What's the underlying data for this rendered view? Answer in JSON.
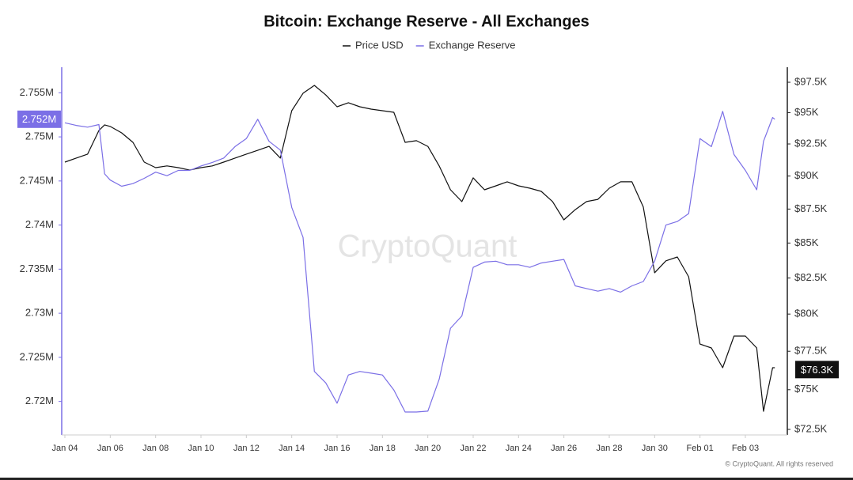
{
  "chart_data": {
    "type": "line",
    "title": "Bitcoin: Exchange Reserve - All Exchanges",
    "watermark": "CryptoQuant",
    "footer": "© CryptoQuant. All rights reserved",
    "x": [
      0,
      0.5,
      1,
      1.5,
      1.75,
      2,
      2.5,
      3,
      3.5,
      4,
      4.5,
      5,
      5.5,
      6,
      6.5,
      7,
      7.5,
      8,
      8.5,
      9,
      9.5,
      10,
      10.5,
      11,
      11.5,
      12,
      12.5,
      13,
      13.5,
      14,
      14.5,
      15,
      15.5,
      16,
      16.5,
      17,
      17.5,
      18,
      18.5,
      19,
      19.5,
      20,
      20.5,
      21,
      21.5,
      22,
      22.5,
      23,
      23.5,
      24,
      24.5,
      25,
      25.5,
      26,
      26.5,
      27,
      27.5,
      28,
      28.5,
      29,
      29.5,
      30,
      30.5,
      30.8,
      31.2,
      31.3
    ],
    "xlim": [
      -0.14,
      31.85
    ],
    "xticks": [
      {
        "value": 0,
        "label": "Jan 04"
      },
      {
        "value": 2,
        "label": "Jan 06"
      },
      {
        "value": 4,
        "label": "Jan 08"
      },
      {
        "value": 6,
        "label": "Jan 10"
      },
      {
        "value": 8,
        "label": "Jan 12"
      },
      {
        "value": 10,
        "label": "Jan 14"
      },
      {
        "value": 12,
        "label": "Jan 16"
      },
      {
        "value": 14,
        "label": "Jan 18"
      },
      {
        "value": 16,
        "label": "Jan 20"
      },
      {
        "value": 18,
        "label": "Jan 22"
      },
      {
        "value": 20,
        "label": "Jan 24"
      },
      {
        "value": 22,
        "label": "Jan 26"
      },
      {
        "value": 24,
        "label": "Jan 28"
      },
      {
        "value": 26,
        "label": "Jan 30"
      },
      {
        "value": 28,
        "label": "Feb 01"
      },
      {
        "value": 30,
        "label": "Feb 03"
      }
    ],
    "ylim": [
      2716200,
      2757900
    ],
    "yticks": [
      {
        "value": 2720000,
        "label": "2.72M"
      },
      {
        "value": 2725000,
        "label": "2.725M"
      },
      {
        "value": 2730000,
        "label": "2.73M"
      },
      {
        "value": 2735000,
        "label": "2.735M"
      },
      {
        "value": 2740000,
        "label": "2.74M"
      },
      {
        "value": 2745000,
        "label": "2.745M"
      },
      {
        "value": 2750000,
        "label": "2.75M"
      },
      {
        "value": 2755000,
        "label": "2.755M"
      }
    ],
    "y2lim": [
      72160,
      98760
    ],
    "y2log": true,
    "y2ticks": [
      {
        "value": 72500,
        "label": "$72.5K"
      },
      {
        "value": 75000,
        "label": "$75K"
      },
      {
        "value": 77500,
        "label": "$77.5K"
      },
      {
        "value": 80000,
        "label": "$80K"
      },
      {
        "value": 82500,
        "label": "$82.5K"
      },
      {
        "value": 85000,
        "label": "$85K"
      },
      {
        "value": 87500,
        "label": "$87.5K"
      },
      {
        "value": 90000,
        "label": "$90K"
      },
      {
        "value": 92500,
        "label": "$92.5K"
      },
      {
        "value": 95000,
        "label": "$95K"
      },
      {
        "value": 97500,
        "label": "$97.5K"
      }
    ],
    "legend": "top",
    "series": [
      {
        "name": "Price USD",
        "color": "#111111",
        "axis": "y2",
        "current": {
          "value": 76300,
          "label": "$76.3K"
        },
        "values": [
          91080,
          91390,
          91700,
          93570,
          94020,
          93890,
          93380,
          92630,
          91080,
          90650,
          90780,
          90650,
          90460,
          90650,
          90780,
          91080,
          91390,
          91700,
          92000,
          92310,
          91390,
          95160,
          96590,
          97240,
          96450,
          95480,
          95810,
          95480,
          95290,
          95160,
          95030,
          92630,
          92760,
          92310,
          90780,
          88950,
          88060,
          89860,
          88950,
          89250,
          89560,
          89250,
          89070,
          88830,
          88060,
          86700,
          87460,
          88060,
          88230,
          89070,
          89560,
          89560,
          87650,
          82870,
          83720,
          83990,
          82590,
          77980,
          77720,
          76420,
          78510,
          78510,
          77720,
          73630,
          76420,
          76420
        ]
      },
      {
        "name": "Exchange Reserve",
        "color": "#7b6fe6",
        "current": {
          "value": 2752000,
          "label": "2.752M"
        },
        "values": [
          2751600,
          2751300,
          2751100,
          2751400,
          2745800,
          2745100,
          2744400,
          2744700,
          2745300,
          2746000,
          2745600,
          2746200,
          2746200,
          2746700,
          2747100,
          2747600,
          2748900,
          2749800,
          2752000,
          2749500,
          2748500,
          2742000,
          2738600,
          2723400,
          2722100,
          2719800,
          2723000,
          2723400,
          2723200,
          2723000,
          2721300,
          2718800,
          2718800,
          2718900,
          2722500,
          2728300,
          2729700,
          2735200,
          2735800,
          2735900,
          2735500,
          2735500,
          2735200,
          2735700,
          2735900,
          2736100,
          2733100,
          2732800,
          2732500,
          2732800,
          2732400,
          2733100,
          2733600,
          2735900,
          2740000,
          2740400,
          2741300,
          2749800,
          2748900,
          2752900,
          2748000,
          2746200,
          2744000,
          2749500,
          2752200,
          2752000
        ]
      }
    ]
  }
}
